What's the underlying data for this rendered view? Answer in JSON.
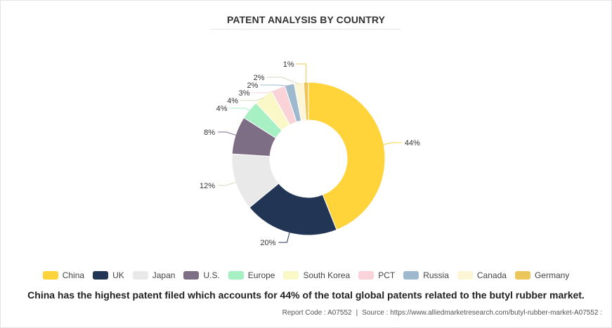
{
  "chart_data": {
    "type": "pie",
    "variant": "donut",
    "title": "PATENT ANALYSIS BY COUNTRY",
    "categories": [
      "China",
      "UK",
      "Japan",
      "U.S.",
      "Europe",
      "South Korea",
      "PCT",
      "Russia",
      "Canada",
      "Germany"
    ],
    "values": [
      44,
      20,
      12,
      8,
      4,
      4,
      3,
      2,
      2,
      1
    ],
    "data_labels": [
      "44%",
      "20%",
      "12%",
      "8%",
      "4%",
      "4%",
      "3%",
      "2%",
      "2%",
      "1%"
    ],
    "colors": [
      "#ffd43b",
      "#233555",
      "#e9e9e9",
      "#7d6e85",
      "#a6f0c4",
      "#fbf8c8",
      "#f9d3d8",
      "#9eb9ce",
      "#fdf6d6",
      "#ecc65a"
    ],
    "legend_position": "bottom"
  },
  "caption": "China has the highest patent filed which accounts for 44% of the total global patents related to the butyl rubber market.",
  "footer": {
    "report_code": "Report Code : A07552",
    "separator": "|",
    "source": "Source : https://www.alliedmarketresearch.com/butyl-rubber-market-A07552 :"
  }
}
